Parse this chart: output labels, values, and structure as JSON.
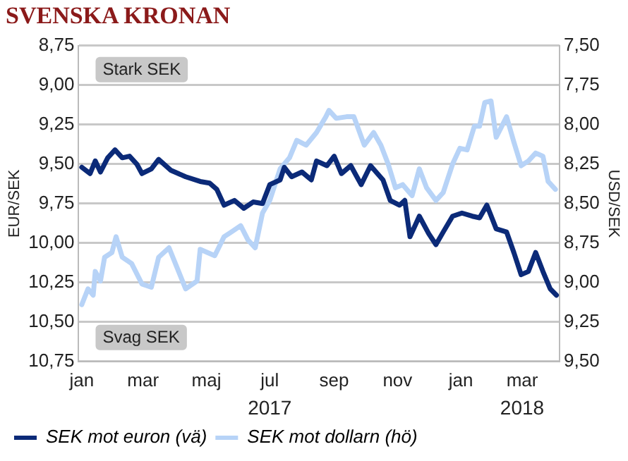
{
  "chart_data": {
    "type": "line",
    "title": "SVENSKA KRONAN",
    "ylabel": "EUR/SEK",
    "y2label": "USD/SEK",
    "annotations": [
      "Stark SEK",
      "Svag SEK",
      "2017",
      "2018"
    ],
    "xlim": [
      "2016-12-29",
      "2018-04-06"
    ],
    "xticks": [
      {
        "value": "2017-01-01",
        "label": "jan"
      },
      {
        "value": "2017-03-01",
        "label": "mar"
      },
      {
        "value": "2017-05-01",
        "label": "maj"
      },
      {
        "value": "2017-07-01",
        "label": "jul"
      },
      {
        "value": "2017-09-01",
        "label": "sep"
      },
      {
        "value": "2017-11-01",
        "label": "nov"
      },
      {
        "value": "2018-01-01",
        "label": "jan"
      },
      {
        "value": "2018-03-01",
        "label": "mar"
      }
    ],
    "ylim": [
      10.75,
      8.75
    ],
    "yticks": [
      {
        "value": 8.75,
        "label": "8,75"
      },
      {
        "value": 9,
        "label": "9,00"
      },
      {
        "value": 9.25,
        "label": "9,25"
      },
      {
        "value": 9.5,
        "label": "9,50"
      },
      {
        "value": 9.75,
        "label": "9,75"
      },
      {
        "value": 10,
        "label": "10,00"
      },
      {
        "value": 10.25,
        "label": "10,25"
      },
      {
        "value": 10.5,
        "label": "10,50"
      },
      {
        "value": 10.75,
        "label": "10,75"
      }
    ],
    "y2lim": [
      9.5,
      7.5
    ],
    "y2ticks": [
      {
        "value": 7.5,
        "label": "7,50"
      },
      {
        "value": 7.75,
        "label": "7,75"
      },
      {
        "value": 8,
        "label": "8,00"
      },
      {
        "value": 8.25,
        "label": "8,25"
      },
      {
        "value": 8.5,
        "label": "8,50"
      },
      {
        "value": 8.75,
        "label": "8,75"
      },
      {
        "value": 9,
        "label": "9,00"
      },
      {
        "value": 9.25,
        "label": "9,25"
      },
      {
        "value": 9.5,
        "label": "9,50"
      }
    ],
    "grid": "y",
    "legend": "bottom",
    "marker": "none",
    "line_style": "solid",
    "series": [
      {
        "name": "SEK mot euron (vä)",
        "color": "#0b2a78",
        "x": [
          "2017-01-01",
          "2017-01-09",
          "2017-01-14",
          "2017-01-19",
          "2017-01-26",
          "2017-02-02",
          "2017-02-09",
          "2017-02-16",
          "2017-02-23",
          "2017-02-28",
          "2017-03-09",
          "2017-03-16",
          "2017-03-28",
          "2017-04-11",
          "2017-04-25",
          "2017-05-04",
          "2017-05-11",
          "2017-05-18",
          "2017-05-28",
          "2017-06-06",
          "2017-06-15",
          "2017-06-24",
          "2017-07-01",
          "2017-07-11",
          "2017-07-15",
          "2017-07-22",
          "2017-08-01",
          "2017-08-10",
          "2017-08-15",
          "2017-08-25",
          "2017-09-01",
          "2017-09-08",
          "2017-09-17",
          "2017-09-27",
          "2017-10-06",
          "2017-10-18",
          "2017-10-25",
          "2017-11-03",
          "2017-11-08",
          "2017-11-13",
          "2017-11-22",
          "2017-12-01",
          "2017-12-08",
          "2017-12-15",
          "2017-12-24",
          "2018-01-02",
          "2018-01-12",
          "2018-01-19",
          "2018-01-26",
          "2018-02-04",
          "2018-02-14",
          "2018-02-21",
          "2018-02-28",
          "2018-03-07",
          "2018-03-14",
          "2018-03-21",
          "2018-03-28",
          "2018-04-03"
        ],
        "values": [
          9.52,
          9.56,
          9.48,
          9.55,
          9.46,
          9.41,
          9.46,
          9.45,
          9.5,
          9.56,
          9.53,
          9.47,
          9.54,
          9.58,
          9.61,
          9.62,
          9.66,
          9.76,
          9.73,
          9.78,
          9.74,
          9.75,
          9.63,
          9.6,
          9.52,
          9.58,
          9.55,
          9.6,
          9.48,
          9.51,
          9.45,
          9.56,
          9.51,
          9.63,
          9.51,
          9.6,
          9.73,
          9.76,
          9.73,
          9.96,
          9.83,
          9.94,
          10.01,
          9.93,
          9.83,
          9.81,
          9.83,
          9.84,
          9.76,
          9.91,
          9.93,
          10.06,
          10.2,
          10.18,
          10.06,
          10.18,
          10.29,
          10.33
        ]
      },
      {
        "name": "SEK mot dollarn (hö)",
        "color": "#b7d3f7",
        "axis": "y2",
        "x": [
          "2017-01-01",
          "2017-01-07",
          "2017-01-12",
          "2017-01-14",
          "2017-01-19",
          "2017-01-23",
          "2017-01-30",
          "2017-02-03",
          "2017-02-09",
          "2017-02-18",
          "2017-02-28",
          "2017-03-09",
          "2017-03-16",
          "2017-03-26",
          "2017-04-03",
          "2017-04-11",
          "2017-04-22",
          "2017-04-25",
          "2017-05-09",
          "2017-05-18",
          "2017-05-25",
          "2017-06-03",
          "2017-06-10",
          "2017-06-17",
          "2017-06-24",
          "2017-07-01",
          "2017-07-11",
          "2017-07-20",
          "2017-07-27",
          "2017-08-05",
          "2017-08-15",
          "2017-08-24",
          "2017-08-27",
          "2017-09-03",
          "2017-09-13",
          "2017-09-20",
          "2017-09-30",
          "2017-10-09",
          "2017-10-16",
          "2017-10-23",
          "2017-10-30",
          "2017-11-06",
          "2017-11-15",
          "2017-11-22",
          "2017-11-29",
          "2017-12-08",
          "2017-12-15",
          "2017-12-24",
          "2017-12-31",
          "2018-01-07",
          "2018-01-14",
          "2018-01-19",
          "2018-01-24",
          "2018-01-30",
          "2018-02-04",
          "2018-02-14",
          "2018-02-21",
          "2018-02-28",
          "2018-03-07",
          "2018-03-14",
          "2018-03-21",
          "2018-03-26",
          "2018-04-02"
        ],
        "values": [
          9.14,
          9.04,
          9.08,
          8.93,
          8.99,
          8.84,
          8.81,
          8.71,
          8.84,
          8.88,
          9.01,
          9.03,
          8.84,
          8.78,
          8.91,
          9.04,
          8.99,
          8.79,
          8.83,
          8.71,
          8.68,
          8.64,
          8.73,
          8.78,
          8.56,
          8.48,
          8.28,
          8.21,
          8.1,
          8.13,
          8.05,
          7.95,
          7.91,
          7.96,
          7.95,
          7.95,
          8.13,
          8.05,
          8.13,
          8.25,
          8.4,
          8.38,
          8.45,
          8.28,
          8.4,
          8.48,
          8.43,
          8.25,
          8.15,
          8.16,
          8.01,
          8.01,
          7.86,
          7.85,
          8.08,
          7.95,
          8.11,
          8.26,
          8.23,
          8.18,
          8.2,
          8.36,
          8.41
        ]
      }
    ]
  }
}
